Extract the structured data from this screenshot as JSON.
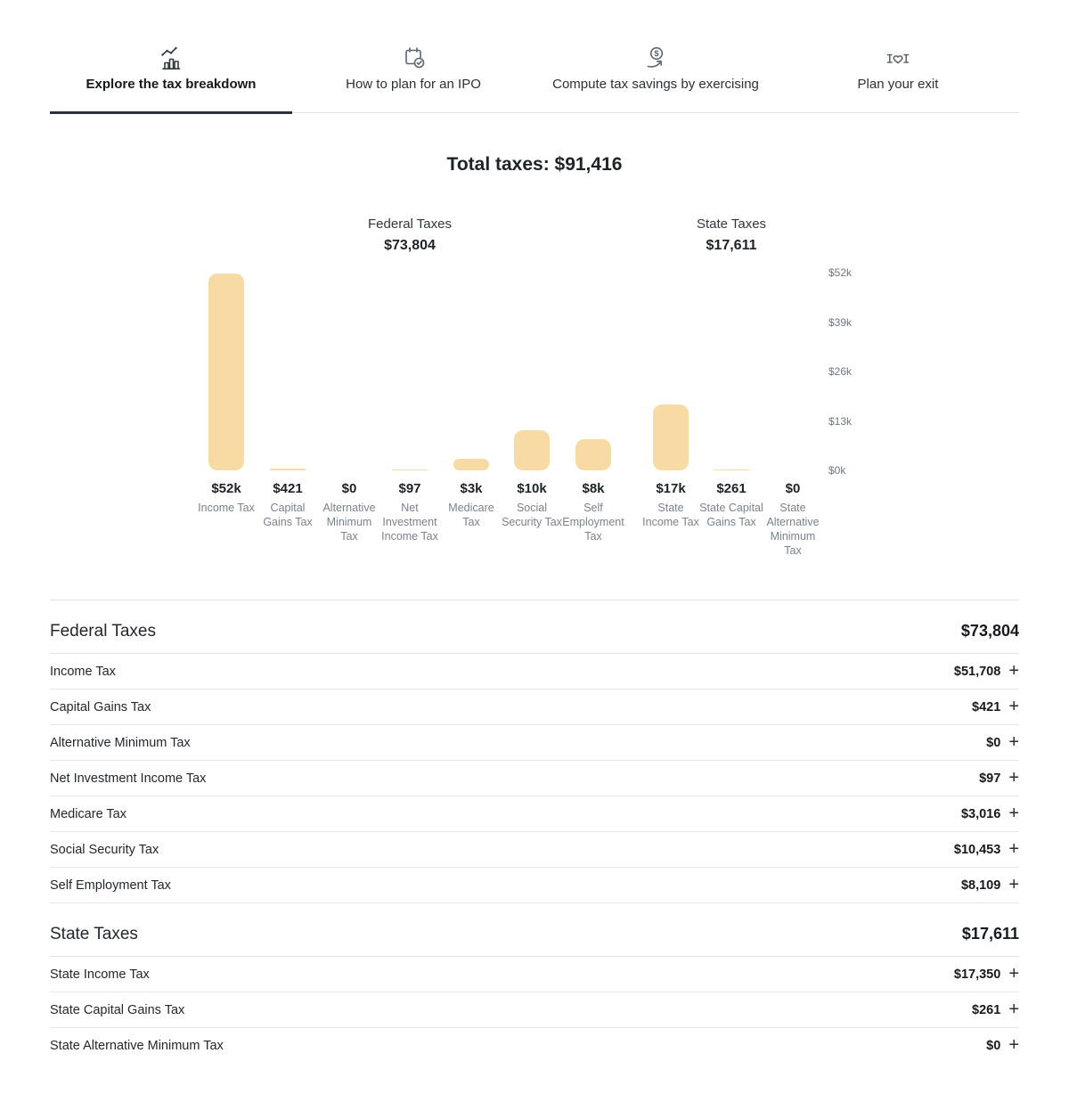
{
  "tabs": [
    {
      "label": "Explore the tax breakdown",
      "icon": "bar-chart-trend-icon",
      "active": true
    },
    {
      "label": "How to plan for an IPO",
      "icon": "calendar-check-icon",
      "active": false
    },
    {
      "label": "Compute tax savings by exercising",
      "icon": "dollar-search-icon",
      "active": false
    },
    {
      "label": "Plan your exit",
      "icon": "handshake-icon",
      "active": false
    }
  ],
  "chart_data": {
    "type": "bar",
    "title": "Total taxes: $91,416",
    "ylim": [
      0,
      52000
    ],
    "yticks": [
      "$52k",
      "$39k",
      "$26k",
      "$13k",
      "$0k"
    ],
    "bar_color": "#f8dba4",
    "legend_position": "none",
    "grid": false,
    "groups": [
      {
        "label": "Federal Taxes",
        "total": "$73,804"
      },
      {
        "label": "State Taxes",
        "total": "$17,611"
      }
    ],
    "bars": [
      {
        "label": "$52k",
        "name": "Income Tax",
        "value": 51708,
        "group": 0
      },
      {
        "label": "$421",
        "name": "Capital Gains Tax",
        "value": 421,
        "group": 0
      },
      {
        "label": "$0",
        "name": "Alternative Minimum Tax",
        "value": 0,
        "group": 0
      },
      {
        "label": "$97",
        "name": "Net Investment Income Tax",
        "value": 97,
        "group": 0
      },
      {
        "label": "$3k",
        "name": "Medicare Tax",
        "value": 3016,
        "group": 0
      },
      {
        "label": "$10k",
        "name": "Social Security Tax",
        "value": 10453,
        "group": 0
      },
      {
        "label": "$8k",
        "name": "Self Employment Tax",
        "value": 8109,
        "group": 0
      },
      {
        "label": "$17k",
        "name": "State Income Tax",
        "value": 17350,
        "group": 1
      },
      {
        "label": "$261",
        "name": "State Capital Gains Tax",
        "value": 261,
        "group": 1
      },
      {
        "label": "$0",
        "name": "State Alternative Minimum Tax",
        "value": 0,
        "group": 1
      }
    ]
  },
  "table": {
    "expand_icon": "+",
    "sections": [
      {
        "title": "Federal Taxes",
        "total": "$73,804",
        "rows": [
          {
            "label": "Income Tax",
            "value": "$51,708"
          },
          {
            "label": "Capital Gains Tax",
            "value": "$421"
          },
          {
            "label": "Alternative Minimum Tax",
            "value": "$0"
          },
          {
            "label": "Net Investment Income Tax",
            "value": "$97"
          },
          {
            "label": "Medicare Tax",
            "value": "$3,016"
          },
          {
            "label": "Social Security Tax",
            "value": "$10,453"
          },
          {
            "label": "Self Employment Tax",
            "value": "$8,109"
          }
        ]
      },
      {
        "title": "State Taxes",
        "total": "$17,611",
        "rows": [
          {
            "label": "State Income Tax",
            "value": "$17,350"
          },
          {
            "label": "State Capital Gains Tax",
            "value": "$261"
          },
          {
            "label": "State Alternative Minimum Tax",
            "value": "$0"
          }
        ]
      }
    ]
  }
}
